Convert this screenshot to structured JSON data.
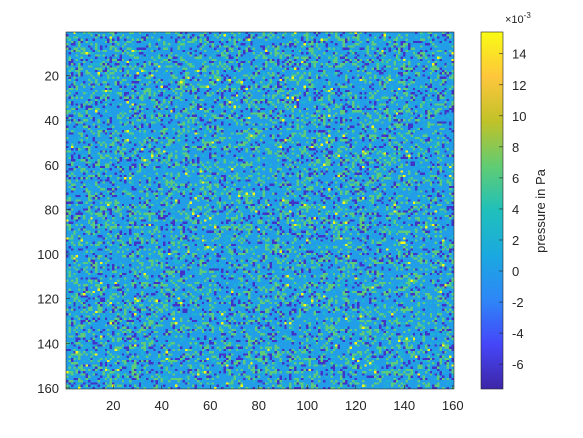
{
  "chart_data": {
    "type": "heatmap",
    "title": "",
    "xlabel": "",
    "ylabel": "",
    "x_range": [
      1,
      160
    ],
    "y_range": [
      1,
      160
    ],
    "y_direction": "reverse",
    "rows": 160,
    "cols": 160,
    "x_ticks": [
      "20",
      "40",
      "60",
      "80",
      "100",
      "120",
      "140",
      "160"
    ],
    "y_ticks": [
      "20",
      "40",
      "60",
      "80",
      "100",
      "120",
      "140",
      "160"
    ],
    "x_tick_values": [
      20,
      40,
      60,
      80,
      100,
      120,
      140,
      160
    ],
    "y_tick_values": [
      20,
      40,
      60,
      80,
      100,
      120,
      140,
      160
    ],
    "colormap": "parula",
    "colormap_stops": [
      "#3e26a8",
      "#4547f9",
      "#2e87f7",
      "#1ba9e0",
      "#20c0bb",
      "#62cc73",
      "#c1c229",
      "#fec63c",
      "#f9fb15"
    ],
    "value_distribution": [
      {
        "value": -0.0065,
        "share": 0.12
      },
      {
        "value": 0.0,
        "share": 0.58
      },
      {
        "value": 0.0022,
        "share": 0.1
      },
      {
        "value": 0.0065,
        "share": 0.19
      },
      {
        "value": 0.0155,
        "share": 0.01
      }
    ],
    "colorbar": {
      "label": "pressure in Pa",
      "exponent_label": "×10",
      "exponent_power": "-3",
      "range": [
        -7.6,
        15.4
      ],
      "ticks": [
        "14",
        "12",
        "10",
        "8",
        "6",
        "4",
        "2",
        "0",
        "-2",
        "-4",
        "-6"
      ],
      "tick_values": [
        14,
        12,
        10,
        8,
        6,
        4,
        2,
        0,
        -2,
        -4,
        -6
      ]
    }
  }
}
